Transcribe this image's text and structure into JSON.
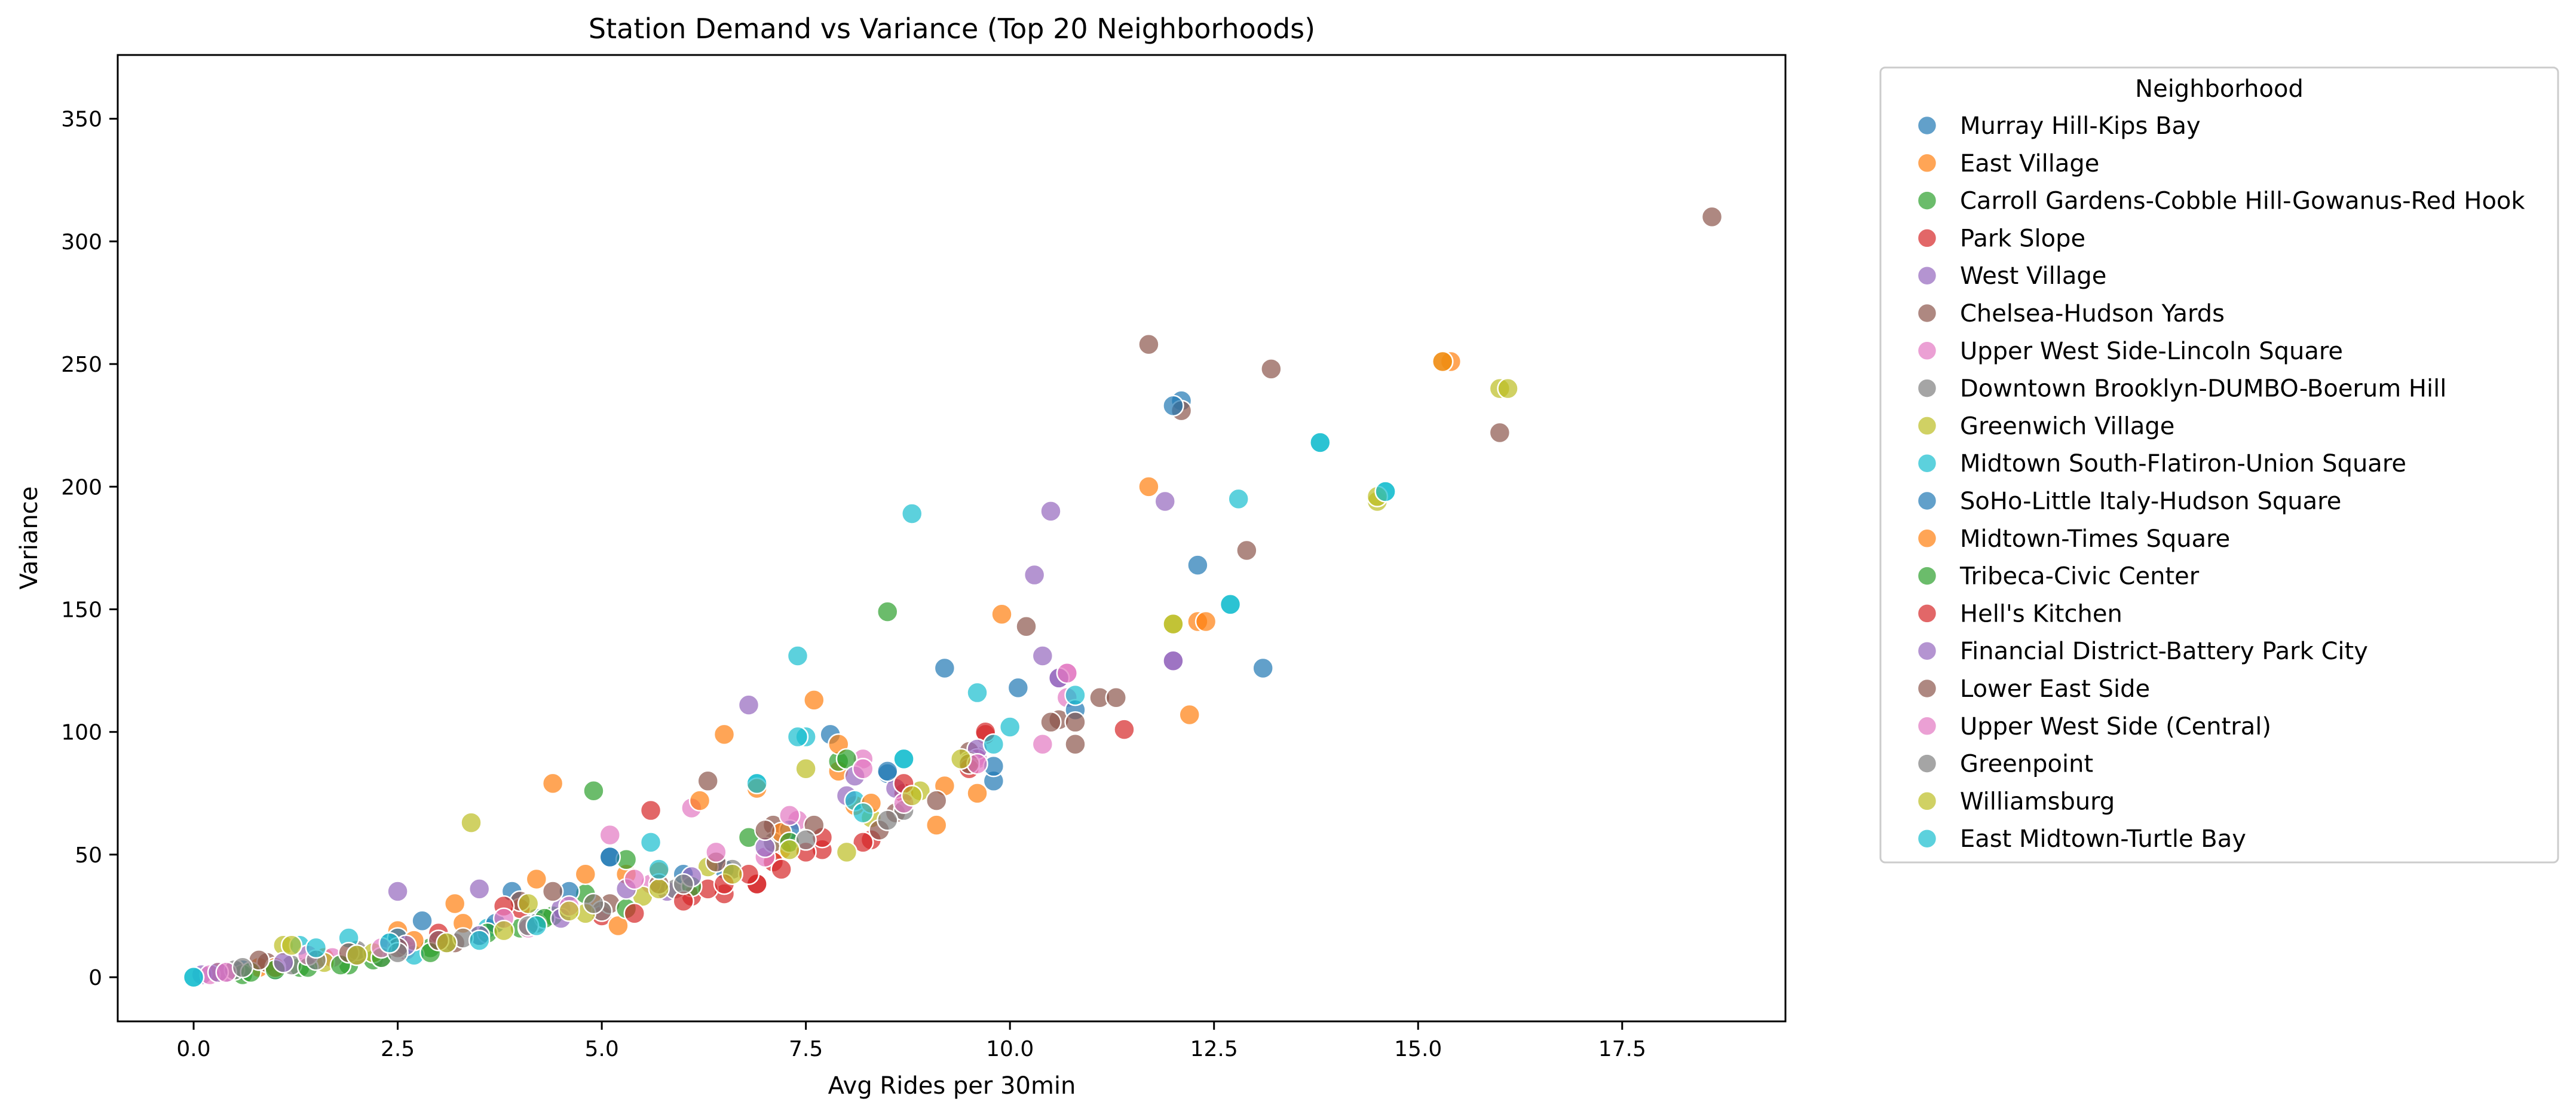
{
  "chart_data": {
    "type": "scatter",
    "title": "Station Demand vs Variance (Top 20 Neighborhoods)",
    "xlabel": "Avg Rides per 30min",
    "ylabel": "Variance",
    "xlim": [
      -0.93,
      19.5
    ],
    "ylim": [
      -18,
      376
    ],
    "xticks": [
      0.0,
      2.5,
      5.0,
      7.5,
      10.0,
      12.5,
      15.0,
      17.5
    ],
    "xtick_labels": [
      "0.0",
      "2.5",
      "5.0",
      "7.5",
      "10.0",
      "12.5",
      "15.0",
      "17.5"
    ],
    "yticks": [
      0,
      50,
      100,
      150,
      200,
      250,
      300,
      350
    ],
    "ytick_labels": [
      "0",
      "50",
      "100",
      "150",
      "200",
      "250",
      "300",
      "350"
    ],
    "grid": false,
    "legend": {
      "title": "Neighborhood",
      "placement": "outside-right-top"
    },
    "series": [
      {
        "name": "Murray Hill-Kips Bay",
        "color": "#1f77b4",
        "points": [
          [
            2.8,
            23
          ],
          [
            3.9,
            35
          ],
          [
            5.1,
            49
          ],
          [
            6.5,
            44
          ],
          [
            7.8,
            99
          ],
          [
            8.5,
            83
          ],
          [
            9.2,
            126
          ],
          [
            9.8,
            80
          ],
          [
            10.1,
            118
          ],
          [
            12.1,
            235
          ],
          [
            12.3,
            168
          ],
          [
            13.1,
            126
          ],
          [
            0.6,
            3
          ],
          [
            1.5,
            7
          ],
          [
            2.4,
            14
          ],
          [
            4.2,
            24
          ]
        ]
      },
      {
        "name": "East Village",
        "color": "#ff7f0e",
        "points": [
          [
            0.8,
            4
          ],
          [
            1.6,
            8
          ],
          [
            2.5,
            19
          ],
          [
            3.3,
            22
          ],
          [
            4.4,
            79
          ],
          [
            5.3,
            42
          ],
          [
            6.5,
            99
          ],
          [
            7.2,
            52
          ],
          [
            7.6,
            113
          ],
          [
            8.1,
            70
          ],
          [
            9.1,
            62
          ],
          [
            9.9,
            148
          ],
          [
            11.7,
            200
          ],
          [
            12.2,
            107
          ],
          [
            12.3,
            145
          ],
          [
            15.4,
            251
          ],
          [
            0.3,
            2
          ],
          [
            3.0,
            14
          ],
          [
            4.9,
            30
          ],
          [
            7.9,
            84
          ]
        ]
      },
      {
        "name": "Carroll Gardens-Cobble Hill-Gowanus-Red Hook",
        "color": "#2ca02c",
        "points": [
          [
            0.6,
            1
          ],
          [
            1.3,
            4
          ],
          [
            2.2,
            7
          ],
          [
            2.9,
            12
          ],
          [
            3.5,
            17
          ],
          [
            4.4,
            25
          ],
          [
            4.8,
            34
          ],
          [
            5.3,
            48
          ],
          [
            6.8,
            57
          ],
          [
            7.9,
            88
          ],
          [
            8.5,
            149
          ],
          [
            1.9,
            5
          ],
          [
            4.0,
            20
          ]
        ]
      },
      {
        "name": "Park Slope",
        "color": "#d62728",
        "points": [
          [
            3.0,
            18
          ],
          [
            4.0,
            28
          ],
          [
            5.6,
            68
          ],
          [
            6.1,
            33
          ],
          [
            6.5,
            34
          ],
          [
            6.9,
            38
          ],
          [
            7.1,
            47
          ],
          [
            7.7,
            52
          ],
          [
            8.3,
            56
          ],
          [
            8.7,
            75
          ],
          [
            9.7,
            99
          ],
          [
            11.4,
            101
          ],
          [
            5.0,
            25
          ],
          [
            6.3,
            36
          ]
        ]
      },
      {
        "name": "West Village",
        "color": "#9467bd",
        "points": [
          [
            0.1,
            1
          ],
          [
            0.4,
            2
          ],
          [
            2.5,
            35
          ],
          [
            3.5,
            36
          ],
          [
            4.5,
            28
          ],
          [
            5.8,
            35
          ],
          [
            6.8,
            111
          ],
          [
            8.0,
            74
          ],
          [
            8.6,
            77
          ],
          [
            9.6,
            90
          ],
          [
            10.3,
            164
          ],
          [
            10.4,
            131
          ],
          [
            10.6,
            122
          ],
          [
            10.5,
            190
          ],
          [
            11.9,
            194
          ],
          [
            12.0,
            129
          ],
          [
            2.0,
            10
          ]
        ]
      },
      {
        "name": "Chelsea-Hudson Yards",
        "color": "#8c564b",
        "points": [
          [
            0.9,
            6
          ],
          [
            2.0,
            9
          ],
          [
            3.2,
            14
          ],
          [
            4.0,
            31
          ],
          [
            5.1,
            30
          ],
          [
            6.3,
            80
          ],
          [
            7.1,
            62
          ],
          [
            8.6,
            67
          ],
          [
            9.5,
            92
          ],
          [
            10.2,
            143
          ],
          [
            10.6,
            105
          ],
          [
            10.8,
            95
          ],
          [
            11.7,
            258
          ],
          [
            12.1,
            231
          ],
          [
            13.2,
            248
          ],
          [
            12.9,
            174
          ],
          [
            16.0,
            222
          ],
          [
            18.6,
            310
          ],
          [
            11.1,
            114
          ],
          [
            11.3,
            114
          ]
        ]
      },
      {
        "name": "Upper West Side-Lincoln Square",
        "color": "#e377c2",
        "points": [
          [
            0.2,
            1
          ],
          [
            1.7,
            8
          ],
          [
            3.0,
            15
          ],
          [
            4.1,
            20
          ],
          [
            5.1,
            58
          ],
          [
            6.1,
            69
          ],
          [
            7.0,
            49
          ],
          [
            7.4,
            64
          ],
          [
            8.2,
            89
          ],
          [
            9.6,
            89
          ],
          [
            10.7,
            124
          ],
          [
            10.7,
            114
          ],
          [
            2.6,
            11
          ],
          [
            5.6,
            38
          ]
        ]
      },
      {
        "name": "Downtown Brooklyn-DUMBO-Boerum Hill",
        "color": "#7f7f7f",
        "points": [
          [
            0.5,
            3
          ],
          [
            1.2,
            5
          ],
          [
            2.0,
            11
          ],
          [
            3.1,
            14
          ],
          [
            4.2,
            22
          ],
          [
            5.0,
            27
          ],
          [
            5.9,
            36
          ],
          [
            7.1,
            55
          ],
          [
            8.7,
            68
          ],
          [
            2.3,
            8
          ],
          [
            6.6,
            44
          ]
        ]
      },
      {
        "name": "Greenwich Village",
        "color": "#bcbd22",
        "points": [
          [
            1.1,
            13
          ],
          [
            2.2,
            10
          ],
          [
            3.4,
            63
          ],
          [
            4.1,
            30
          ],
          [
            5.5,
            33
          ],
          [
            6.3,
            45
          ],
          [
            7.5,
            85
          ],
          [
            8.3,
            65
          ],
          [
            8.9,
            76
          ],
          [
            9.5,
            88
          ],
          [
            12.0,
            144
          ],
          [
            14.5,
            194
          ],
          [
            15.3,
            251
          ],
          [
            16.0,
            240
          ],
          [
            1.6,
            6
          ],
          [
            4.8,
            26
          ]
        ]
      },
      {
        "name": "Midtown South-Flatiron-Union Square",
        "color": "#17becf",
        "points": [
          [
            0.0,
            0
          ],
          [
            1.3,
            13
          ],
          [
            1.9,
            16
          ],
          [
            3.6,
            20
          ],
          [
            5.6,
            55
          ],
          [
            6.9,
            79
          ],
          [
            7.4,
            131
          ],
          [
            7.5,
            98
          ],
          [
            8.1,
            72
          ],
          [
            8.7,
            89
          ],
          [
            8.8,
            189
          ],
          [
            9.6,
            116
          ],
          [
            10.0,
            102
          ],
          [
            12.7,
            152
          ],
          [
            12.8,
            195
          ],
          [
            13.8,
            218
          ],
          [
            14.6,
            198
          ],
          [
            2.7,
            9
          ]
        ]
      },
      {
        "name": "SoHo-Little Italy-Hudson Square",
        "color": "#1f77b4",
        "points": [
          [
            2.5,
            16
          ],
          [
            3.7,
            22
          ],
          [
            4.6,
            35
          ],
          [
            5.1,
            49
          ],
          [
            6.0,
            42
          ],
          [
            7.3,
            60
          ],
          [
            8.5,
            84
          ],
          [
            9.8,
            86
          ],
          [
            10.8,
            109
          ],
          [
            12.0,
            233
          ],
          [
            1.0,
            3
          ]
        ]
      },
      {
        "name": "Midtown-Times Square",
        "color": "#ff7f0e",
        "points": [
          [
            1.0,
            4
          ],
          [
            2.7,
            15
          ],
          [
            3.2,
            30
          ],
          [
            4.2,
            40
          ],
          [
            4.8,
            42
          ],
          [
            5.2,
            21
          ],
          [
            5.7,
            43
          ],
          [
            6.2,
            72
          ],
          [
            6.9,
            77
          ],
          [
            7.2,
            59
          ],
          [
            7.9,
            95
          ],
          [
            8.3,
            71
          ],
          [
            9.2,
            78
          ],
          [
            9.6,
            75
          ],
          [
            12.4,
            145
          ],
          [
            15.3,
            251
          ]
        ]
      },
      {
        "name": "Tribeca-Civic Center",
        "color": "#2ca02c",
        "points": [
          [
            0.7,
            2
          ],
          [
            1.4,
            4
          ],
          [
            1.8,
            5
          ],
          [
            2.3,
            8
          ],
          [
            2.9,
            10
          ],
          [
            3.6,
            18
          ],
          [
            4.3,
            24
          ],
          [
            4.9,
            76
          ],
          [
            5.3,
            28
          ],
          [
            6.1,
            37
          ],
          [
            7.3,
            55
          ],
          [
            8.0,
            89
          ],
          [
            1.0,
            3
          ]
        ]
      },
      {
        "name": "Hell's Kitchen",
        "color": "#d62728",
        "points": [
          [
            3.8,
            29
          ],
          [
            5.4,
            26
          ],
          [
            6.0,
            31
          ],
          [
            6.5,
            38
          ],
          [
            6.9,
            38
          ],
          [
            7.2,
            44
          ],
          [
            7.5,
            51
          ],
          [
            7.7,
            57
          ],
          [
            8.2,
            55
          ],
          [
            8.7,
            79
          ],
          [
            9.5,
            85
          ],
          [
            9.7,
            100
          ],
          [
            6.8,
            42
          ]
        ]
      },
      {
        "name": "Financial District-Battery Park City",
        "color": "#9467bd",
        "points": [
          [
            0.3,
            2
          ],
          [
            1.1,
            6
          ],
          [
            2.6,
            13
          ],
          [
            3.5,
            17
          ],
          [
            4.5,
            24
          ],
          [
            5.3,
            36
          ],
          [
            6.1,
            41
          ],
          [
            7.0,
            53
          ],
          [
            8.1,
            82
          ],
          [
            9.6,
            93
          ],
          [
            10.6,
            122
          ],
          [
            12.0,
            129
          ]
        ]
      },
      {
        "name": "Lower East Side",
        "color": "#8c564b",
        "points": [
          [
            0.8,
            7
          ],
          [
            1.9,
            10
          ],
          [
            3.0,
            15
          ],
          [
            4.4,
            35
          ],
          [
            5.7,
            38
          ],
          [
            6.4,
            47
          ],
          [
            7.0,
            60
          ],
          [
            7.6,
            62
          ],
          [
            8.4,
            60
          ],
          [
            9.1,
            72
          ],
          [
            9.5,
            87
          ],
          [
            10.5,
            104
          ],
          [
            10.8,
            104
          ],
          [
            2.5,
            12
          ]
        ]
      },
      {
        "name": "Upper West Side (Central)",
        "color": "#e377c2",
        "points": [
          [
            0.4,
            2
          ],
          [
            1.4,
            9
          ],
          [
            2.3,
            12
          ],
          [
            3.8,
            24
          ],
          [
            4.6,
            29
          ],
          [
            5.4,
            40
          ],
          [
            6.4,
            51
          ],
          [
            7.3,
            66
          ],
          [
            8.2,
            85
          ],
          [
            8.7,
            71
          ],
          [
            9.6,
            87
          ],
          [
            10.4,
            95
          ],
          [
            10.7,
            124
          ]
        ]
      },
      {
        "name": "Greenpoint",
        "color": "#7f7f7f",
        "points": [
          [
            0.6,
            4
          ],
          [
            1.5,
            7
          ],
          [
            2.5,
            10
          ],
          [
            3.3,
            16
          ],
          [
            4.1,
            21
          ],
          [
            4.9,
            30
          ],
          [
            6.0,
            38
          ],
          [
            7.5,
            56
          ],
          [
            8.5,
            64
          ],
          [
            2.0,
            9
          ]
        ]
      },
      {
        "name": "Williamsburg",
        "color": "#bcbd22",
        "points": [
          [
            1.2,
            13
          ],
          [
            2.0,
            9
          ],
          [
            3.1,
            14
          ],
          [
            3.8,
            19
          ],
          [
            4.6,
            27
          ],
          [
            5.7,
            36
          ],
          [
            6.6,
            42
          ],
          [
            8.0,
            51
          ],
          [
            8.8,
            74
          ],
          [
            9.4,
            89
          ],
          [
            12.0,
            144
          ],
          [
            14.5,
            196
          ],
          [
            16.1,
            240
          ],
          [
            7.3,
            52
          ]
        ]
      },
      {
        "name": "East Midtown-Turtle Bay",
        "color": "#17becf",
        "points": [
          [
            0.0,
            0
          ],
          [
            1.5,
            12
          ],
          [
            2.4,
            14
          ],
          [
            3.5,
            15
          ],
          [
            4.2,
            21
          ],
          [
            5.7,
            44
          ],
          [
            7.4,
            98
          ],
          [
            8.2,
            67
          ],
          [
            8.7,
            89
          ],
          [
            9.8,
            95
          ],
          [
            10.8,
            115
          ],
          [
            12.7,
            152
          ],
          [
            13.8,
            218
          ],
          [
            14.6,
            198
          ],
          [
            6.9,
            79
          ]
        ]
      }
    ]
  }
}
